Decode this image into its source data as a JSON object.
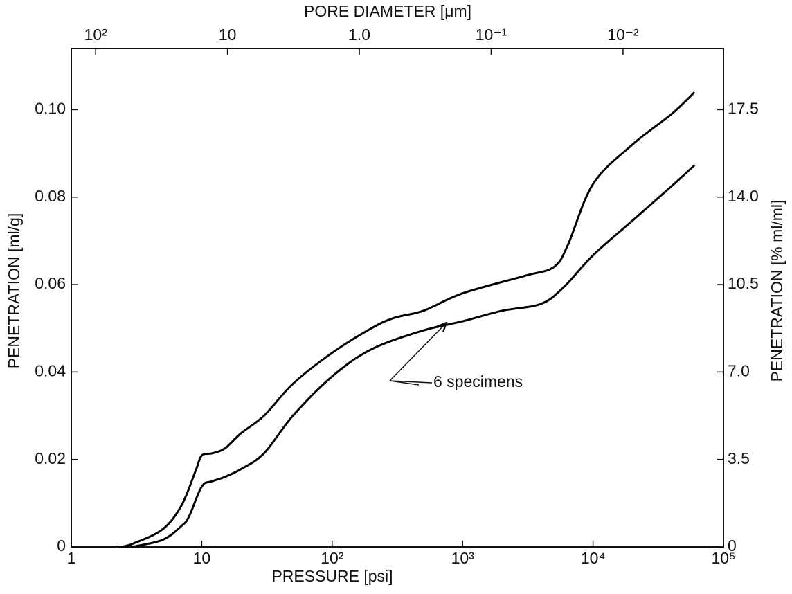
{
  "chart_data": {
    "type": "line",
    "x_label": "PRESSURE [psi]",
    "y_label": "PENETRATION [ml/g]",
    "y2_label": "PENETRATION [% ml/ml]",
    "x2_label": "PORE DIAMETER [μm]",
    "annotation": "6 specimens",
    "log_x": true,
    "xlim": [
      1,
      100000
    ],
    "xticks": [
      1,
      10,
      {
        "value": 100,
        "label": "10²"
      },
      {
        "value": 1000,
        "label": "10³"
      },
      {
        "value": 10000,
        "label": "10⁴"
      },
      {
        "value": 100000,
        "label": "10⁵"
      }
    ],
    "x2lim": [
      153,
      0.00173
    ],
    "x2ticks": [
      {
        "value": 100,
        "label": "10²"
      },
      10,
      {
        "value": 1,
        "label": "1.0"
      },
      {
        "value": 0.1,
        "label": "10⁻¹"
      },
      {
        "value": 0.01,
        "label": "10⁻²"
      }
    ],
    "ylim": [
      0,
      0.114
    ],
    "yticks": [
      0,
      0.02,
      0.04,
      0.06,
      0.08,
      {
        "value": 0.1,
        "label": "0.10"
      }
    ],
    "y2lim": [
      0,
      19.95
    ],
    "y2ticks": [
      0,
      3.5,
      {
        "value": 7,
        "label": "7.0"
      },
      10.5,
      {
        "value": 14,
        "label": "14.0"
      },
      17.5
    ],
    "series": [
      {
        "color": "#000000",
        "x": [
          2.4,
          3,
          5,
          7,
          9,
          10,
          12,
          15,
          20,
          30,
          50,
          100,
          200,
          300,
          500,
          1000,
          3000,
          5000,
          6400,
          10000,
          20000,
          40000,
          60000
        ],
        "values": [
          0,
          0.0008,
          0.004,
          0.0095,
          0.0175,
          0.0209,
          0.0214,
          0.0225,
          0.026,
          0.03,
          0.0373,
          0.0444,
          0.05,
          0.0524,
          0.054,
          0.058,
          0.062,
          0.064,
          0.069,
          0.083,
          0.092,
          0.099,
          0.104
        ]
      },
      {
        "color": "#000000",
        "x": [
          2.9,
          5,
          7,
          8,
          10,
          12,
          15,
          20,
          30,
          50,
          100,
          200,
          500,
          1000,
          2000,
          4000,
          6000,
          10000,
          20000,
          40000,
          60000
        ],
        "values": [
          0,
          0.0016,
          0.0048,
          0.007,
          0.0138,
          0.015,
          0.016,
          0.0178,
          0.0214,
          0.03,
          0.039,
          0.0452,
          0.0495,
          0.0516,
          0.054,
          0.0556,
          0.0595,
          0.0667,
          0.0746,
          0.0825,
          0.0873
        ]
      }
    ]
  }
}
